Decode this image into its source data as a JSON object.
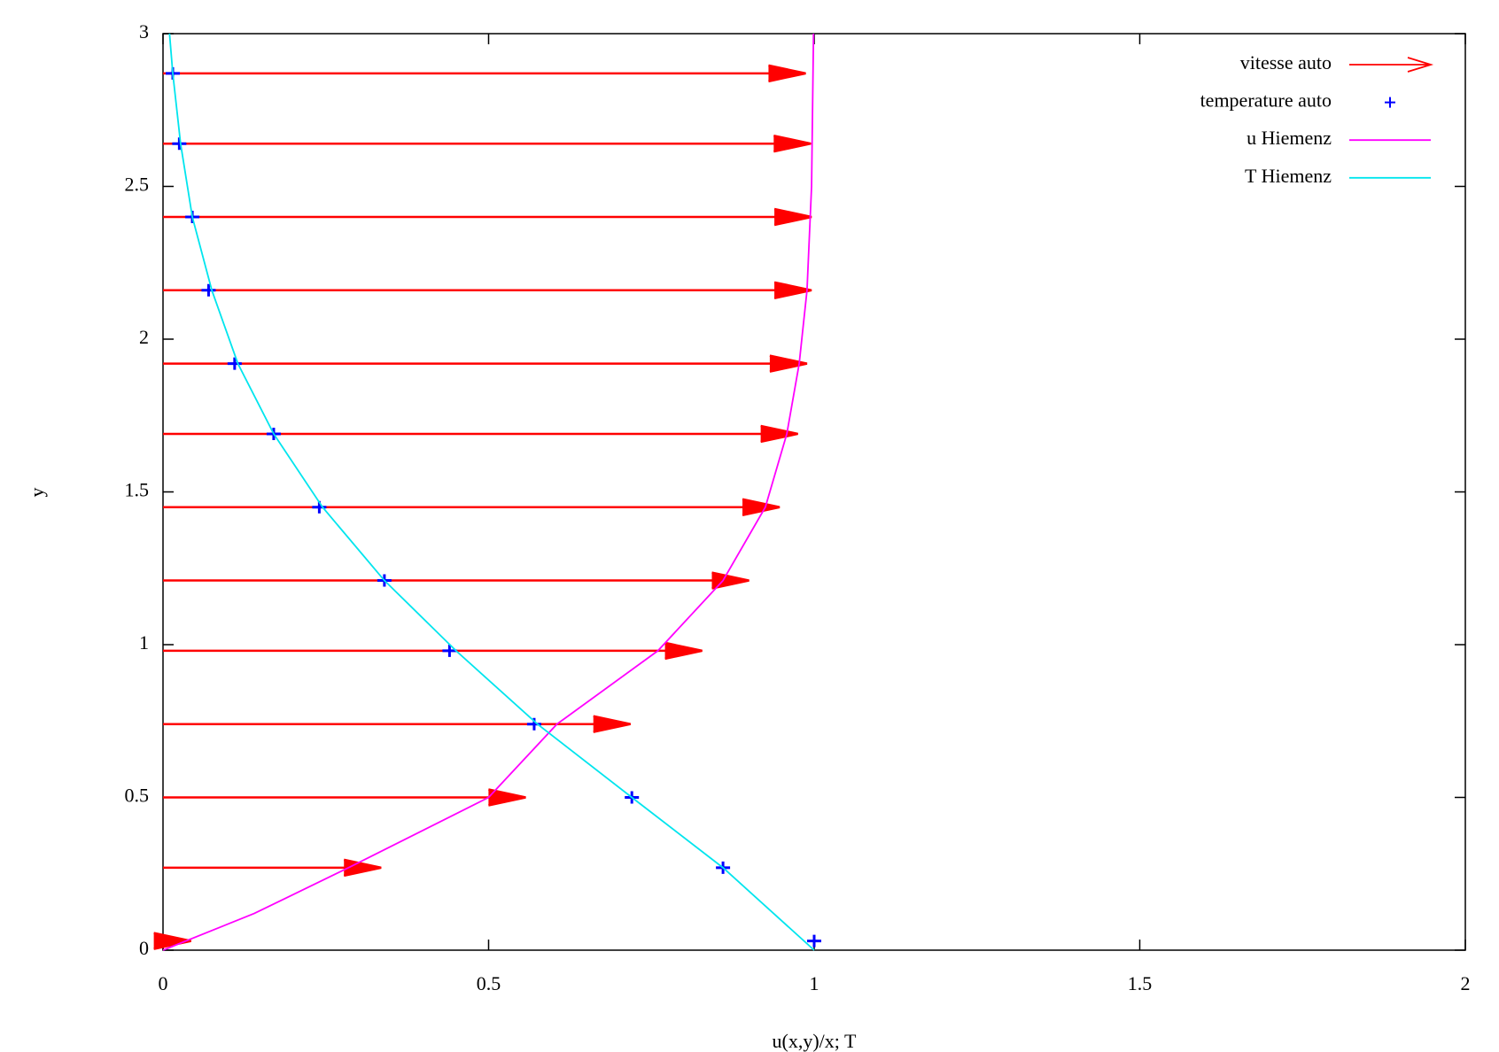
{
  "chart_data": {
    "type": "vector",
    "xlabel": "u(x,y)/x; T",
    "ylabel": "y",
    "xlim": [
      0,
      2
    ],
    "xticks": [
      0,
      0.5,
      1,
      1.5,
      2
    ],
    "ylim": [
      0,
      3
    ],
    "yticks": [
      0,
      0.5,
      1,
      1.5,
      2,
      2.5,
      3
    ],
    "grid": false,
    "legend": "top-right",
    "series": [
      {
        "name": "vitesse auto",
        "type": "vector",
        "color": "#ff0000",
        "x": [
          0.043,
          0.335,
          0.557,
          0.718,
          0.828,
          0.9,
          0.947,
          0.975,
          0.989,
          0.996,
          0.996,
          0.995,
          0.987
        ],
        "y": [
          0.03,
          0.27,
          0.5,
          0.74,
          0.98,
          1.21,
          1.45,
          1.69,
          1.92,
          2.16,
          2.4,
          2.64,
          2.87
        ]
      },
      {
        "name": "temperature auto",
        "type": "points",
        "color": "#0000ff",
        "x": [
          1.0,
          0.86,
          0.72,
          0.57,
          0.44,
          0.34,
          0.24,
          0.17,
          0.11,
          0.07,
          0.045,
          0.025,
          0.015
        ],
        "y": [
          0.03,
          0.27,
          0.5,
          0.74,
          0.98,
          1.21,
          1.45,
          1.69,
          1.92,
          2.16,
          2.4,
          2.64,
          2.87
        ]
      },
      {
        "name": "u Hiemenz",
        "type": "line",
        "color": "#ff00ff",
        "x": [
          0,
          0.14,
          0.285,
          0.5,
          0.605,
          0.76,
          0.86,
          0.925,
          0.958,
          0.977,
          0.989,
          0.996,
          0.999
        ],
        "y": [
          0,
          0.12,
          0.27,
          0.5,
          0.74,
          0.98,
          1.21,
          1.45,
          1.69,
          1.92,
          2.16,
          2.5,
          3
        ]
      },
      {
        "name": "T Hiemenz",
        "type": "line",
        "color": "#00e5ee",
        "x": [
          1,
          0.86,
          0.72,
          0.575,
          0.45,
          0.34,
          0.245,
          0.17,
          0.115,
          0.075,
          0.045,
          0.027,
          0.015,
          0.01
        ],
        "y": [
          0,
          0.27,
          0.5,
          0.74,
          0.98,
          1.21,
          1.45,
          1.69,
          1.92,
          2.16,
          2.4,
          2.64,
          2.87,
          3
        ]
      }
    ]
  }
}
